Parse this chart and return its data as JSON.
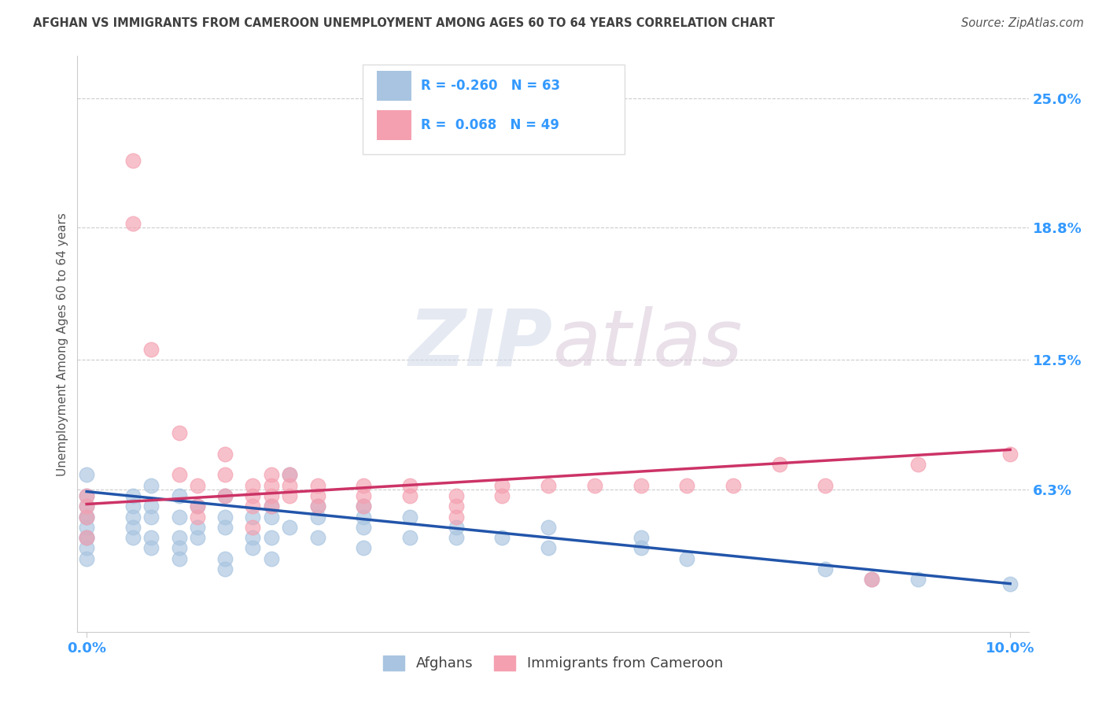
{
  "title": "AFGHAN VS IMMIGRANTS FROM CAMEROON UNEMPLOYMENT AMONG AGES 60 TO 64 YEARS CORRELATION CHART",
  "source": "Source: ZipAtlas.com",
  "ylabel": "Unemployment Among Ages 60 to 64 years",
  "xlim": [
    0.0,
    0.1
  ],
  "ylim": [
    0.0,
    0.265
  ],
  "afghan_R": -0.26,
  "afghan_N": 63,
  "cameroon_R": 0.068,
  "cameroon_N": 49,
  "afghan_color": "#a8c4e0",
  "cameroon_color": "#f4a0b0",
  "afghan_line_color": "#2255aa",
  "cameroon_line_color": "#cc3366",
  "background_color": "#ffffff",
  "grid_color": "#cccccc",
  "title_color": "#404040",
  "tick_label_color": "#3399ff",
  "ytick_values": [
    0.063,
    0.125,
    0.188,
    0.25
  ],
  "ytick_labels": [
    "6.3%",
    "12.5%",
    "18.8%",
    "25.0%"
  ],
  "afghan_line_x": [
    0.0,
    0.1
  ],
  "afghan_line_y": [
    0.062,
    0.018
  ],
  "cameroon_line_x": [
    0.0,
    0.1
  ],
  "cameroon_line_y": [
    0.056,
    0.082
  ],
  "afghan_scatter": [
    [
      0.0,
      0.055
    ],
    [
      0.0,
      0.04
    ],
    [
      0.0,
      0.05
    ],
    [
      0.0,
      0.06
    ],
    [
      0.0,
      0.07
    ],
    [
      0.0,
      0.04
    ],
    [
      0.0,
      0.03
    ],
    [
      0.0,
      0.05
    ],
    [
      0.0,
      0.045
    ],
    [
      0.0,
      0.035
    ],
    [
      0.005,
      0.06
    ],
    [
      0.005,
      0.04
    ],
    [
      0.005,
      0.055
    ],
    [
      0.005,
      0.05
    ],
    [
      0.005,
      0.045
    ],
    [
      0.007,
      0.065
    ],
    [
      0.007,
      0.055
    ],
    [
      0.007,
      0.05
    ],
    [
      0.007,
      0.04
    ],
    [
      0.007,
      0.035
    ],
    [
      0.01,
      0.06
    ],
    [
      0.01,
      0.05
    ],
    [
      0.01,
      0.04
    ],
    [
      0.01,
      0.035
    ],
    [
      0.01,
      0.03
    ],
    [
      0.012,
      0.055
    ],
    [
      0.012,
      0.045
    ],
    [
      0.012,
      0.04
    ],
    [
      0.015,
      0.06
    ],
    [
      0.015,
      0.05
    ],
    [
      0.015,
      0.045
    ],
    [
      0.015,
      0.03
    ],
    [
      0.015,
      0.025
    ],
    [
      0.018,
      0.05
    ],
    [
      0.018,
      0.04
    ],
    [
      0.018,
      0.035
    ],
    [
      0.02,
      0.055
    ],
    [
      0.02,
      0.05
    ],
    [
      0.02,
      0.04
    ],
    [
      0.02,
      0.03
    ],
    [
      0.022,
      0.07
    ],
    [
      0.022,
      0.045
    ],
    [
      0.025,
      0.05
    ],
    [
      0.025,
      0.04
    ],
    [
      0.025,
      0.055
    ],
    [
      0.03,
      0.05
    ],
    [
      0.03,
      0.045
    ],
    [
      0.03,
      0.055
    ],
    [
      0.03,
      0.035
    ],
    [
      0.035,
      0.05
    ],
    [
      0.035,
      0.04
    ],
    [
      0.04,
      0.045
    ],
    [
      0.04,
      0.04
    ],
    [
      0.045,
      0.04
    ],
    [
      0.05,
      0.045
    ],
    [
      0.05,
      0.035
    ],
    [
      0.06,
      0.04
    ],
    [
      0.06,
      0.035
    ],
    [
      0.065,
      0.03
    ],
    [
      0.08,
      0.025
    ],
    [
      0.085,
      0.02
    ],
    [
      0.09,
      0.02
    ],
    [
      0.1,
      0.018
    ]
  ],
  "cameroon_scatter": [
    [
      0.0,
      0.055
    ],
    [
      0.0,
      0.05
    ],
    [
      0.0,
      0.04
    ],
    [
      0.0,
      0.06
    ],
    [
      0.005,
      0.22
    ],
    [
      0.005,
      0.19
    ],
    [
      0.007,
      0.13
    ],
    [
      0.01,
      0.09
    ],
    [
      0.01,
      0.07
    ],
    [
      0.012,
      0.065
    ],
    [
      0.012,
      0.055
    ],
    [
      0.012,
      0.05
    ],
    [
      0.015,
      0.08
    ],
    [
      0.015,
      0.07
    ],
    [
      0.015,
      0.06
    ],
    [
      0.018,
      0.065
    ],
    [
      0.018,
      0.06
    ],
    [
      0.018,
      0.055
    ],
    [
      0.018,
      0.045
    ],
    [
      0.02,
      0.07
    ],
    [
      0.02,
      0.065
    ],
    [
      0.02,
      0.06
    ],
    [
      0.02,
      0.055
    ],
    [
      0.022,
      0.07
    ],
    [
      0.022,
      0.065
    ],
    [
      0.022,
      0.06
    ],
    [
      0.025,
      0.065
    ],
    [
      0.025,
      0.06
    ],
    [
      0.025,
      0.055
    ],
    [
      0.03,
      0.065
    ],
    [
      0.03,
      0.06
    ],
    [
      0.03,
      0.055
    ],
    [
      0.035,
      0.06
    ],
    [
      0.035,
      0.065
    ],
    [
      0.04,
      0.06
    ],
    [
      0.04,
      0.055
    ],
    [
      0.04,
      0.05
    ],
    [
      0.045,
      0.065
    ],
    [
      0.045,
      0.06
    ],
    [
      0.05,
      0.065
    ],
    [
      0.055,
      0.065
    ],
    [
      0.06,
      0.065
    ],
    [
      0.065,
      0.065
    ],
    [
      0.07,
      0.065
    ],
    [
      0.075,
      0.075
    ],
    [
      0.08,
      0.065
    ],
    [
      0.085,
      0.02
    ],
    [
      0.09,
      0.075
    ],
    [
      0.1,
      0.08
    ]
  ]
}
